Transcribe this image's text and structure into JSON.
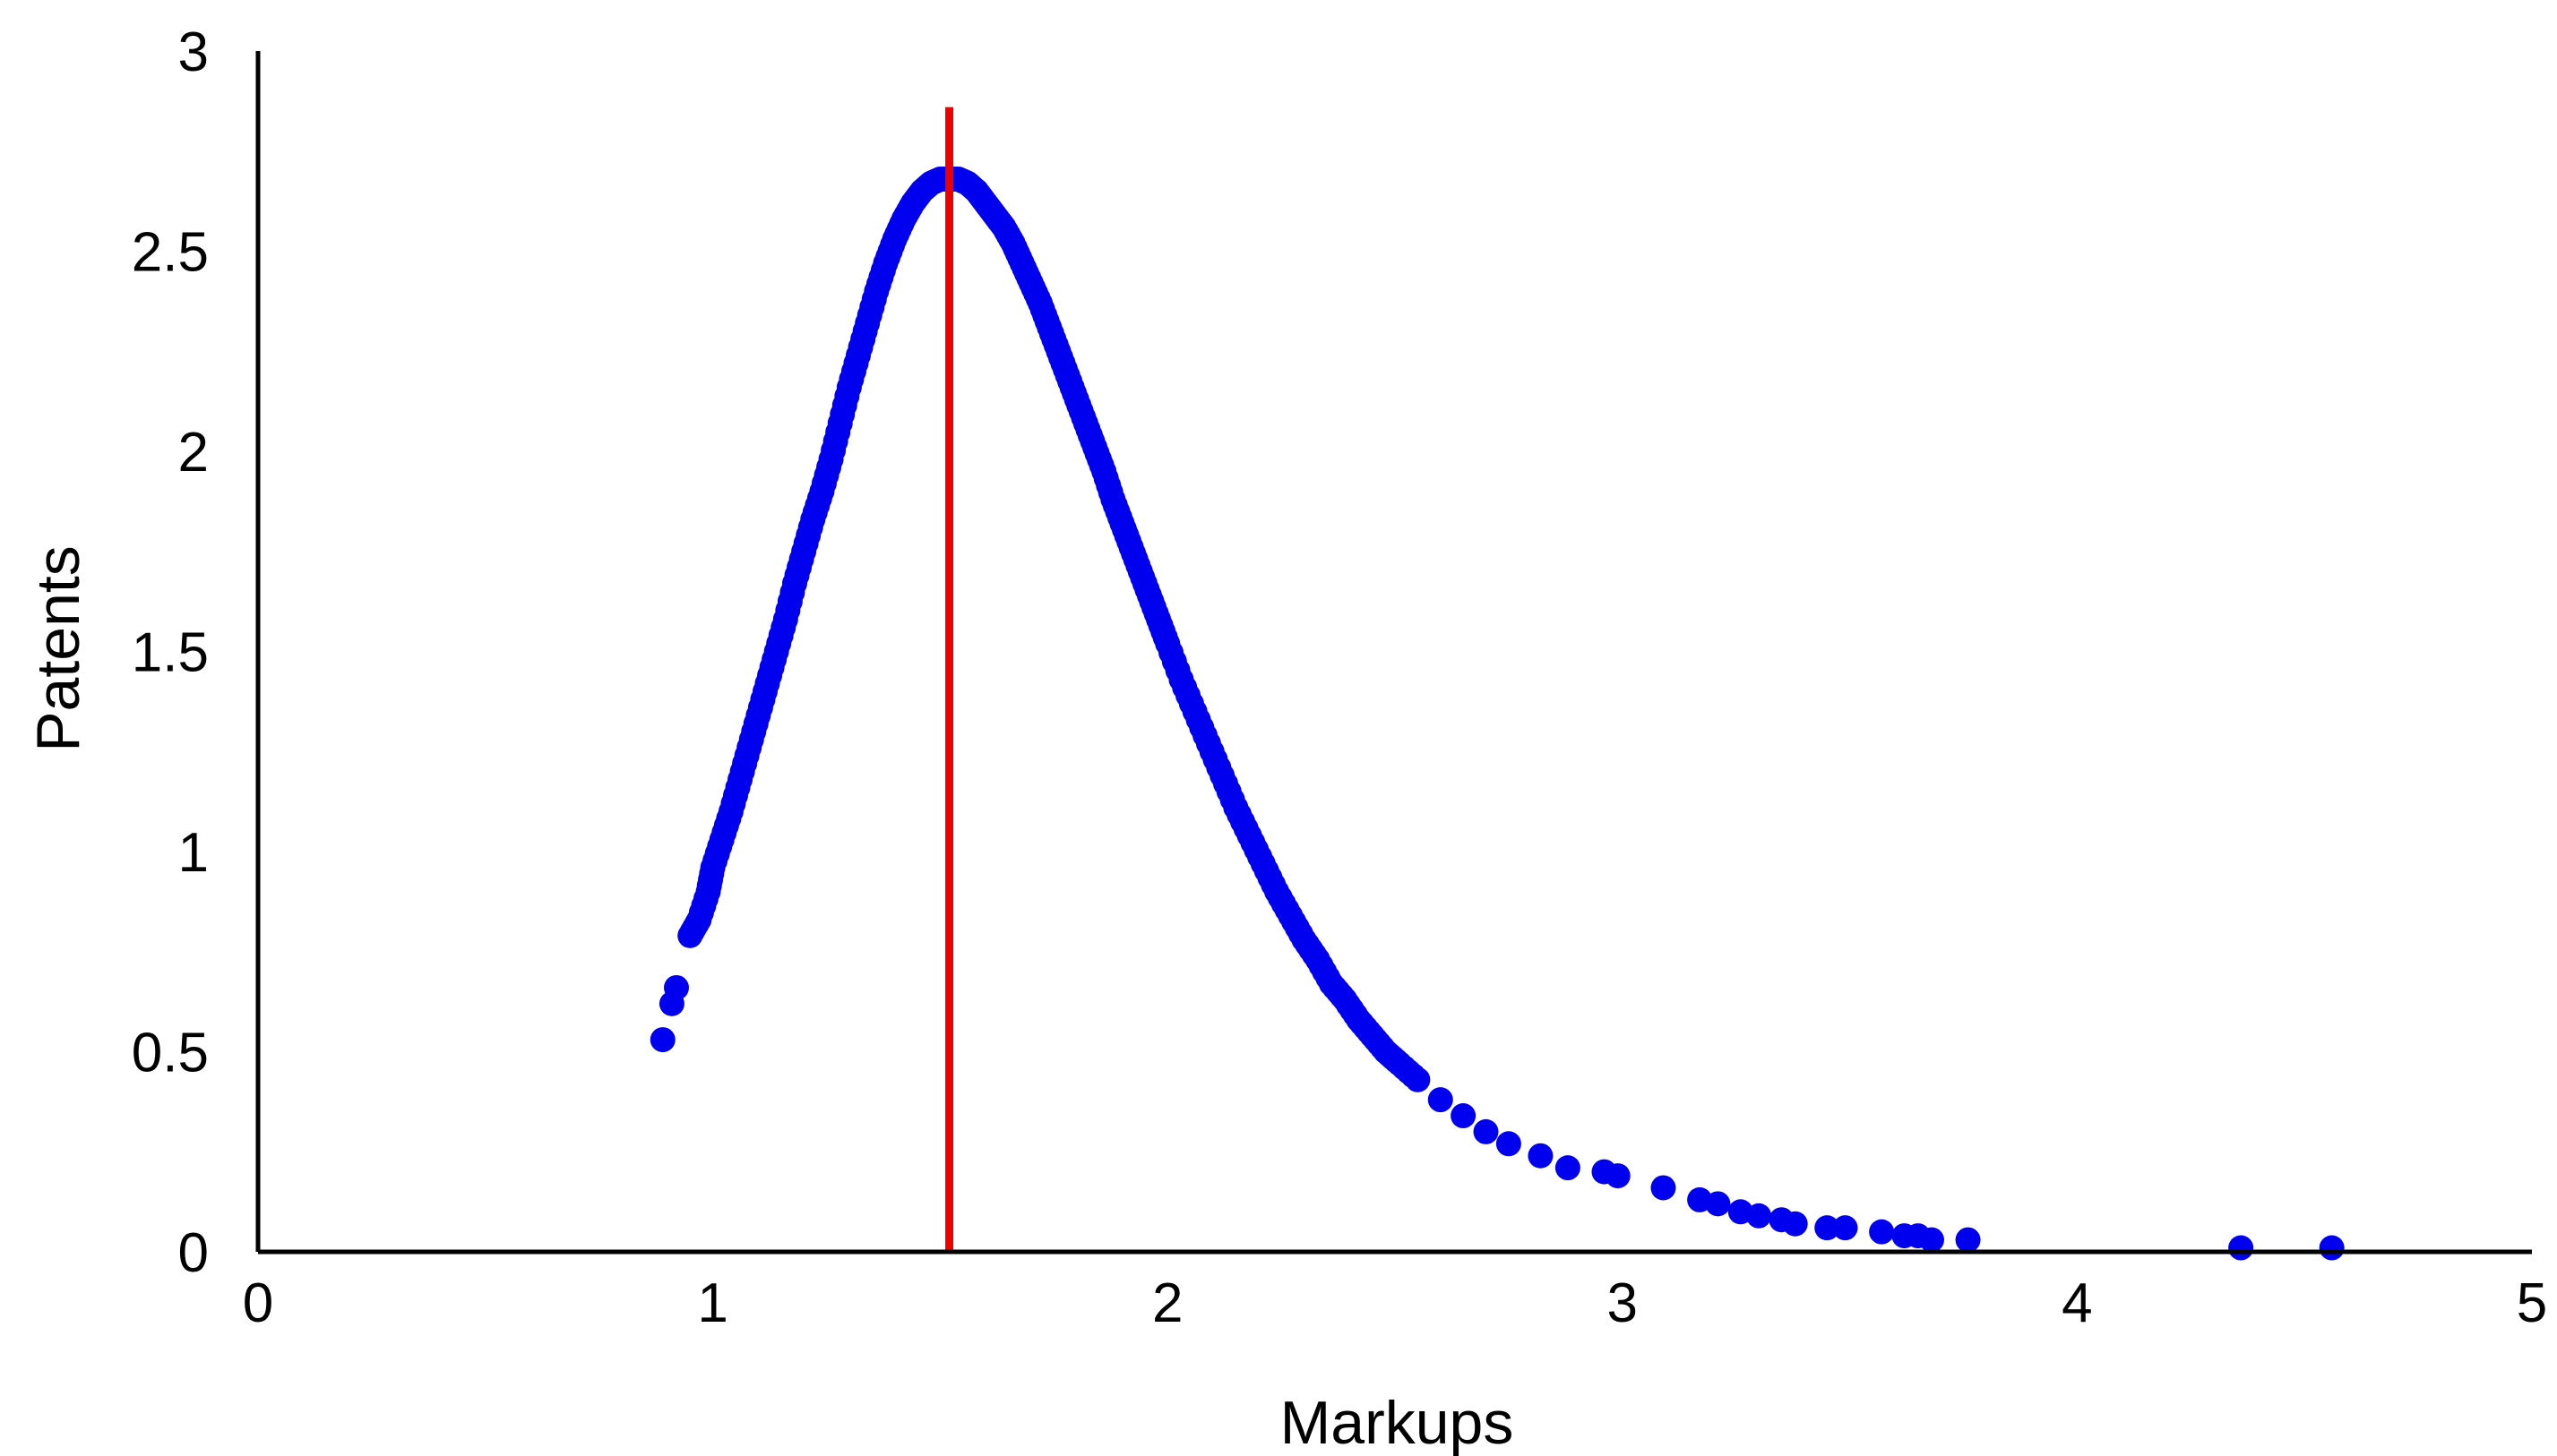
{
  "chart_data": {
    "type": "scatter",
    "title": "",
    "xlabel": "Markups",
    "ylabel": "Patents",
    "xlim": [
      0,
      5
    ],
    "ylim": [
      0,
      3
    ],
    "x_ticks": [
      "0",
      "1",
      "2",
      "3",
      "4",
      "5"
    ],
    "y_ticks": [
      "0",
      "0.5",
      "1",
      "1.5",
      "2",
      "2.5",
      "3"
    ],
    "grid": false,
    "legend": "none",
    "marker_color": "#0000ee",
    "reference_line": {
      "x": 1.52,
      "color": "#ee0000"
    },
    "series": [
      {
        "points": [
          [
            0.89,
            0.53
          ],
          [
            0.91,
            0.62
          ],
          [
            0.92,
            0.66
          ],
          [
            0.95,
            0.79
          ],
          [
            0.97,
            0.83
          ],
          [
            0.99,
            0.9
          ],
          [
            1.0,
            0.96
          ],
          [
            1.02,
            1.03
          ],
          [
            1.04,
            1.1
          ],
          [
            1.06,
            1.18
          ],
          [
            1.08,
            1.26
          ],
          [
            1.1,
            1.34
          ],
          [
            1.12,
            1.42
          ],
          [
            1.14,
            1.5
          ],
          [
            1.16,
            1.58
          ],
          [
            1.18,
            1.67
          ],
          [
            1.2,
            1.75
          ],
          [
            1.22,
            1.83
          ],
          [
            1.24,
            1.9
          ],
          [
            1.26,
            1.98
          ],
          [
            1.28,
            2.07
          ],
          [
            1.3,
            2.16
          ],
          [
            1.32,
            2.24
          ],
          [
            1.34,
            2.32
          ],
          [
            1.36,
            2.4
          ],
          [
            1.38,
            2.47
          ],
          [
            1.4,
            2.53
          ],
          [
            1.42,
            2.58
          ],
          [
            1.44,
            2.62
          ],
          [
            1.46,
            2.65
          ],
          [
            1.48,
            2.67
          ],
          [
            1.5,
            2.68
          ],
          [
            1.52,
            2.68
          ],
          [
            1.54,
            2.68
          ],
          [
            1.56,
            2.67
          ],
          [
            1.58,
            2.65
          ],
          [
            1.6,
            2.62
          ],
          [
            1.62,
            2.59
          ],
          [
            1.64,
            2.56
          ],
          [
            1.66,
            2.52
          ],
          [
            1.68,
            2.47
          ],
          [
            1.7,
            2.42
          ],
          [
            1.72,
            2.37
          ],
          [
            1.74,
            2.31
          ],
          [
            1.76,
            2.25
          ],
          [
            1.78,
            2.19
          ],
          [
            1.8,
            2.13
          ],
          [
            1.82,
            2.07
          ],
          [
            1.84,
            2.01
          ],
          [
            1.86,
            1.95
          ],
          [
            1.88,
            1.88
          ],
          [
            1.9,
            1.82
          ],
          [
            1.92,
            1.76
          ],
          [
            1.94,
            1.7
          ],
          [
            1.96,
            1.64
          ],
          [
            1.98,
            1.58
          ],
          [
            2.0,
            1.52
          ],
          [
            2.03,
            1.43
          ],
          [
            2.06,
            1.35
          ],
          [
            2.09,
            1.27
          ],
          [
            2.12,
            1.19
          ],
          [
            2.15,
            1.11
          ],
          [
            2.18,
            1.04
          ],
          [
            2.21,
            0.97
          ],
          [
            2.24,
            0.9
          ],
          [
            2.27,
            0.84
          ],
          [
            2.3,
            0.78
          ],
          [
            2.33,
            0.73
          ],
          [
            2.36,
            0.67
          ],
          [
            2.39,
            0.63
          ],
          [
            2.42,
            0.58
          ],
          [
            2.45,
            0.54
          ],
          [
            2.48,
            0.5
          ],
          [
            2.51,
            0.47
          ],
          [
            2.55,
            0.43
          ],
          [
            2.6,
            0.38
          ],
          [
            2.65,
            0.34
          ],
          [
            2.7,
            0.3
          ],
          [
            2.75,
            0.27
          ],
          [
            2.82,
            0.24
          ],
          [
            2.88,
            0.21
          ],
          [
            2.96,
            0.2
          ],
          [
            2.99,
            0.19
          ],
          [
            3.09,
            0.16
          ],
          [
            3.17,
            0.13
          ],
          [
            3.21,
            0.12
          ],
          [
            3.26,
            0.1
          ],
          [
            3.3,
            0.09
          ],
          [
            3.35,
            0.08
          ],
          [
            3.38,
            0.07
          ],
          [
            3.45,
            0.06
          ],
          [
            3.49,
            0.06
          ],
          [
            3.57,
            0.05
          ],
          [
            3.62,
            0.04
          ],
          [
            3.65,
            0.04
          ],
          [
            3.68,
            0.03
          ],
          [
            3.76,
            0.03
          ],
          [
            4.36,
            0.01
          ],
          [
            4.56,
            0.01
          ]
        ]
      }
    ]
  }
}
